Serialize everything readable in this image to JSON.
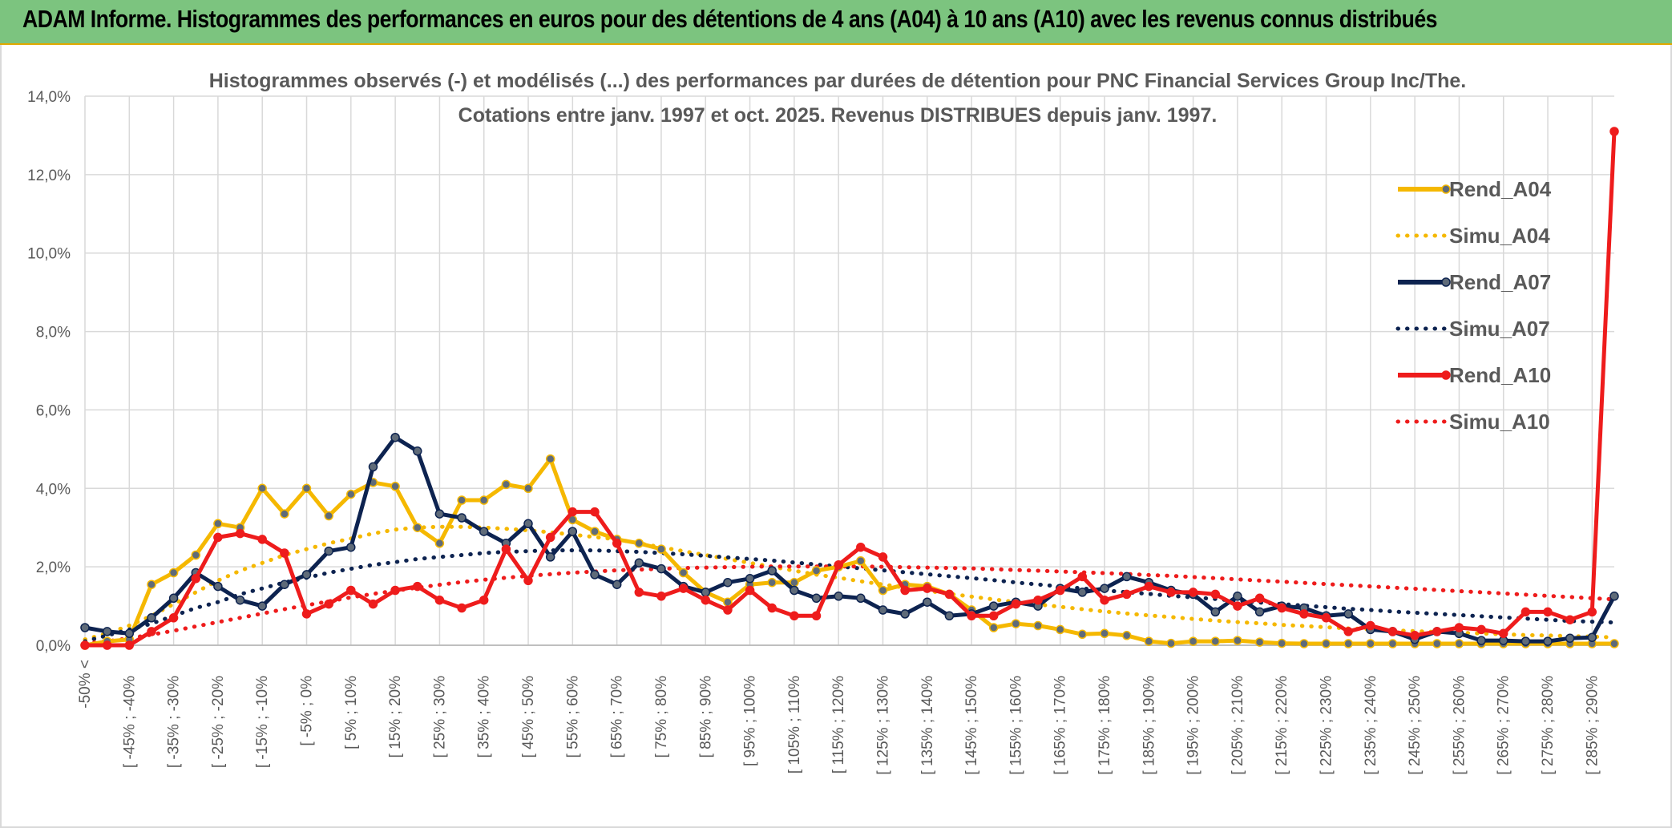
{
  "header": {
    "title": "ADAM Informe. Histogrammes des performances en euros pour des détentions de 4 ans (A04) à 10 ans (A10) avec les revenus connus distribués"
  },
  "chart_data": {
    "type": "line",
    "title_lines": [
      "Histogrammes observés (-) et modélisés (...) des performances par durées de détention pour PNC Financial Services Group Inc/The.",
      "Cotations entre janv. 1997 et oct. 2025. Revenus DISTRIBUES depuis janv. 1997."
    ],
    "xlabel": "",
    "ylabel": "",
    "y_ticks": [
      "0,0%",
      "2,0%",
      "4,0%",
      "6,0%",
      "8,0%",
      "10,0%",
      "12,0%",
      "14,0%"
    ],
    "ylim": [
      0,
      14
    ],
    "y_unit": "%",
    "grid": true,
    "legend_position": "right",
    "x_tick_labels": [
      "-50% <",
      "[ -45% ; -40%",
      "[ -35% ; -30%",
      "[ -25% ; -20%",
      "[ -15% ; -10%",
      "[ -5% ; 0%",
      "[ 5% ; 10%",
      "[ 15% ; 20%",
      "[ 25% ; 30%",
      "[ 35% ; 40%",
      "[ 45% ; 50%",
      "[ 55% ; 60%",
      "[ 65% ; 70%",
      "[ 75% ; 80%",
      "[ 85% ; 90%",
      "[ 95% ; 100%",
      "[ 105% ; 110%",
      "[ 115% ; 120%",
      "[ 125% ; 130%",
      "[ 135% ; 140%",
      "[ 145% ; 150%",
      "[ 155% ; 160%",
      "[ 165% ; 170%",
      "[ 175% ; 180%",
      "[ 185% ; 190%",
      "[ 195% ; 200%",
      "[ 205% ; 210%",
      "[ 215% ; 220%",
      "[ 225% ; 230%",
      "[ 235% ; 240%",
      "[ 245% ; 250%",
      "[ 255% ; 260%",
      "[ 265% ; 270%",
      "[ 275% ; 280%",
      "[ 285% ; 290%"
    ],
    "n_points": 70,
    "series": [
      {
        "name": "Rend_A04",
        "color": "#f5b800",
        "style": "solid",
        "markers": true,
        "values": [
          0.0,
          0.1,
          0.15,
          1.55,
          1.85,
          2.3,
          3.1,
          3.0,
          4.0,
          3.35,
          4.0,
          3.3,
          3.85,
          4.15,
          4.05,
          3.0,
          2.6,
          3.7,
          3.7,
          4.1,
          4.0,
          4.75,
          3.2,
          2.9,
          2.7,
          2.6,
          2.45,
          1.85,
          1.35,
          1.1,
          1.55,
          1.6,
          1.6,
          1.9,
          2.0,
          2.15,
          1.4,
          1.55,
          1.5,
          1.3,
          0.9,
          0.45,
          0.55,
          0.5,
          0.4,
          0.28,
          0.3,
          0.25,
          0.1,
          0.05,
          0.1,
          0.1,
          0.12,
          0.08,
          0.05,
          0.04,
          0.04,
          0.04,
          0.04,
          0.04,
          0.04,
          0.04,
          0.04,
          0.04,
          0.04,
          0.04,
          0.04,
          0.04,
          0.04,
          0.04
        ]
      },
      {
        "name": "Simu_A04",
        "color": "#f5b800",
        "style": "dotted",
        "markers": false,
        "values": [
          0.15,
          0.3,
          0.5,
          0.75,
          1.05,
          1.35,
          1.65,
          1.9,
          2.1,
          2.3,
          2.45,
          2.6,
          2.72,
          2.85,
          2.95,
          3.0,
          3.02,
          3.02,
          3.0,
          2.97,
          2.93,
          2.88,
          2.82,
          2.76,
          2.7,
          2.6,
          2.5,
          2.4,
          2.3,
          2.2,
          2.1,
          2.0,
          1.9,
          1.8,
          1.72,
          1.63,
          1.55,
          1.47,
          1.39,
          1.31,
          1.24,
          1.17,
          1.1,
          1.04,
          0.98,
          0.92,
          0.86,
          0.81,
          0.76,
          0.72,
          0.67,
          0.63,
          0.59,
          0.56,
          0.52,
          0.49,
          0.46,
          0.43,
          0.41,
          0.38,
          0.36,
          0.34,
          0.32,
          0.3,
          0.28,
          0.26,
          0.25,
          0.23,
          0.22,
          0.2
        ]
      },
      {
        "name": "Rend_A07",
        "color": "#0d2350",
        "style": "solid",
        "markers": true,
        "values": [
          0.45,
          0.35,
          0.3,
          0.7,
          1.2,
          1.85,
          1.5,
          1.15,
          1.0,
          1.55,
          1.8,
          2.4,
          2.5,
          4.55,
          5.3,
          4.95,
          3.35,
          3.25,
          2.9,
          2.6,
          3.1,
          2.25,
          2.9,
          1.8,
          1.55,
          2.1,
          1.95,
          1.5,
          1.35,
          1.6,
          1.7,
          1.9,
          1.4,
          1.2,
          1.25,
          1.2,
          0.9,
          0.8,
          1.1,
          0.75,
          0.8,
          1.0,
          1.1,
          1.0,
          1.45,
          1.35,
          1.45,
          1.75,
          1.6,
          1.4,
          1.3,
          0.85,
          1.25,
          0.85,
          1.0,
          0.95,
          0.75,
          0.8,
          0.4,
          0.35,
          0.15,
          0.35,
          0.3,
          0.12,
          0.12,
          0.1,
          0.1,
          0.18,
          0.2,
          1.25
        ]
      },
      {
        "name": "Simu_A07",
        "color": "#0d2350",
        "style": "dotted",
        "markers": false,
        "values": [
          0.1,
          0.25,
          0.4,
          0.55,
          0.75,
          0.95,
          1.1,
          1.3,
          1.45,
          1.6,
          1.72,
          1.85,
          1.95,
          2.05,
          2.12,
          2.2,
          2.25,
          2.3,
          2.35,
          2.38,
          2.4,
          2.42,
          2.42,
          2.42,
          2.4,
          2.38,
          2.35,
          2.32,
          2.28,
          2.24,
          2.2,
          2.16,
          2.11,
          2.06,
          2.01,
          1.96,
          1.91,
          1.86,
          1.81,
          1.76,
          1.71,
          1.66,
          1.6,
          1.55,
          1.5,
          1.45,
          1.4,
          1.35,
          1.31,
          1.26,
          1.22,
          1.18,
          1.13,
          1.09,
          1.05,
          1.01,
          0.97,
          0.93,
          0.9,
          0.86,
          0.83,
          0.8,
          0.77,
          0.74,
          0.71,
          0.68,
          0.65,
          0.62,
          0.6,
          0.58
        ]
      },
      {
        "name": "Rend_A10",
        "color": "#ee1c1c",
        "style": "solid",
        "markers": true,
        "values": [
          0.0,
          0.0,
          0.0,
          0.35,
          0.7,
          1.7,
          2.75,
          2.85,
          2.7,
          2.35,
          0.8,
          1.05,
          1.4,
          1.05,
          1.4,
          1.5,
          1.15,
          0.95,
          1.15,
          2.45,
          1.65,
          2.75,
          3.4,
          3.4,
          2.6,
          1.35,
          1.25,
          1.45,
          1.15,
          0.9,
          1.4,
          0.95,
          0.75,
          0.75,
          2.05,
          2.5,
          2.25,
          1.4,
          1.45,
          1.3,
          0.75,
          0.75,
          1.05,
          1.15,
          1.4,
          1.75,
          1.15,
          1.3,
          1.5,
          1.35,
          1.35,
          1.3,
          1.0,
          1.2,
          0.95,
          0.8,
          0.7,
          0.35,
          0.5,
          0.35,
          0.25,
          0.35,
          0.45,
          0.4,
          0.3,
          0.85,
          0.85,
          0.65,
          0.85,
          13.1
        ]
      },
      {
        "name": "Simu_A10",
        "color": "#ee1c1c",
        "style": "dotted",
        "markers": false,
        "values": [
          0.05,
          0.1,
          0.18,
          0.27,
          0.37,
          0.48,
          0.59,
          0.7,
          0.81,
          0.92,
          1.02,
          1.12,
          1.22,
          1.31,
          1.39,
          1.47,
          1.54,
          1.61,
          1.67,
          1.72,
          1.77,
          1.81,
          1.85,
          1.88,
          1.91,
          1.93,
          1.95,
          1.97,
          1.98,
          1.99,
          2.0,
          2.01,
          2.01,
          2.01,
          2.01,
          2.01,
          2.0,
          1.99,
          1.98,
          1.97,
          1.96,
          1.94,
          1.92,
          1.9,
          1.88,
          1.86,
          1.84,
          1.82,
          1.79,
          1.77,
          1.74,
          1.71,
          1.68,
          1.65,
          1.62,
          1.59,
          1.56,
          1.53,
          1.5,
          1.47,
          1.44,
          1.41,
          1.38,
          1.35,
          1.32,
          1.29,
          1.26,
          1.23,
          1.2,
          1.17
        ]
      }
    ]
  }
}
